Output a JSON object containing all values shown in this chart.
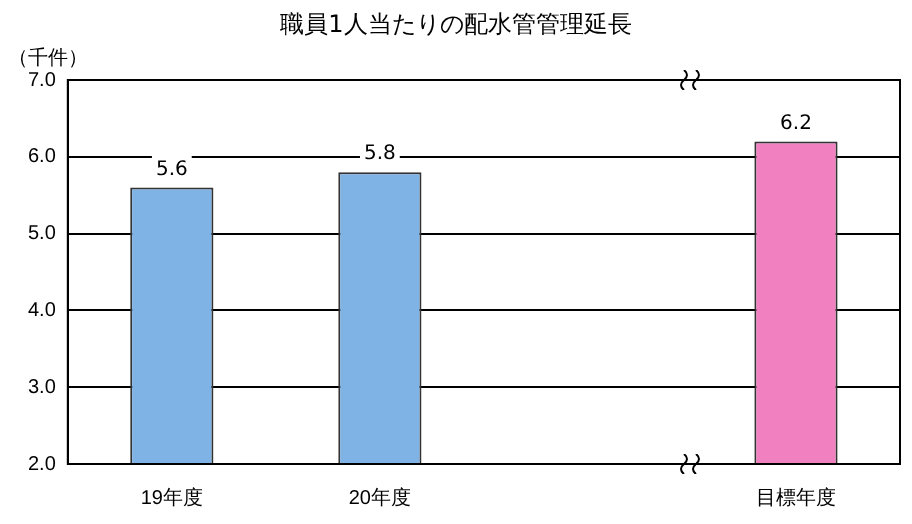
{
  "chart_data": {
    "type": "bar",
    "title": "職員1人当たりの配水管管理延長",
    "ylabel": "（千件）",
    "categories": [
      "19年度",
      "20年度",
      null,
      "目標年度"
    ],
    "values": [
      5.6,
      5.8,
      null,
      6.2
    ],
    "colors": [
      "#7fb2e5",
      "#7fb2e5",
      null,
      "#f080c0"
    ],
    "ylim": [
      2,
      7
    ],
    "yticks": [
      {
        "value": 2,
        "label": "2.0"
      },
      {
        "value": 3,
        "label": "3.0"
      },
      {
        "value": 4,
        "label": "4.0"
      },
      {
        "value": 5,
        "label": "5.0"
      },
      {
        "value": 6,
        "label": "6.0"
      },
      {
        "value": 7,
        "label": "7.0"
      }
    ],
    "grid": "y",
    "legend": false,
    "data_labels": true
  }
}
